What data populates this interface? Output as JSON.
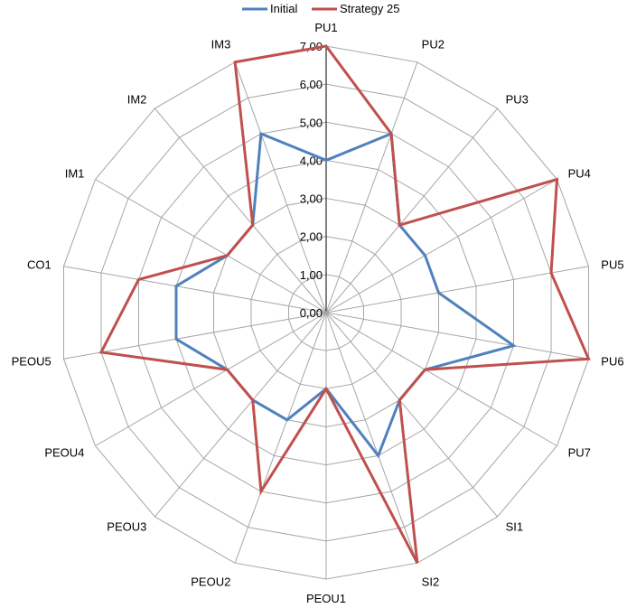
{
  "chart_data": {
    "type": "radar",
    "categories": [
      "PU1",
      "PU2",
      "PU3",
      "PU4",
      "PU5",
      "PU6",
      "PU7",
      "SI1",
      "SI2",
      "PEOU1",
      "PEOU2",
      "PEOU3",
      "PEOU4",
      "PEOU5",
      "CO1",
      "IM1",
      "IM2",
      "IM3"
    ],
    "series": [
      {
        "name": "Initial",
        "color": "#4F81BD",
        "values": [
          4,
          5,
          3,
          3,
          3,
          5,
          3,
          3,
          4,
          2,
          3,
          3,
          3,
          4,
          4,
          3,
          3,
          5
        ]
      },
      {
        "name": "Strategy 25",
        "color": "#C0504D",
        "values": [
          7,
          5,
          3,
          7,
          6,
          7,
          3,
          3,
          7,
          2,
          5,
          3,
          3,
          6,
          5,
          3,
          3,
          7
        ]
      }
    ],
    "rlim": [
      0,
      7
    ],
    "ticks": [
      "0,00",
      "1,00",
      "2,00",
      "3,00",
      "4,00",
      "5,00",
      "6,00",
      "7,00"
    ],
    "grid": true,
    "legend_position": "top",
    "grid_color": "#A6A6A6",
    "axis_color": "#000000"
  }
}
